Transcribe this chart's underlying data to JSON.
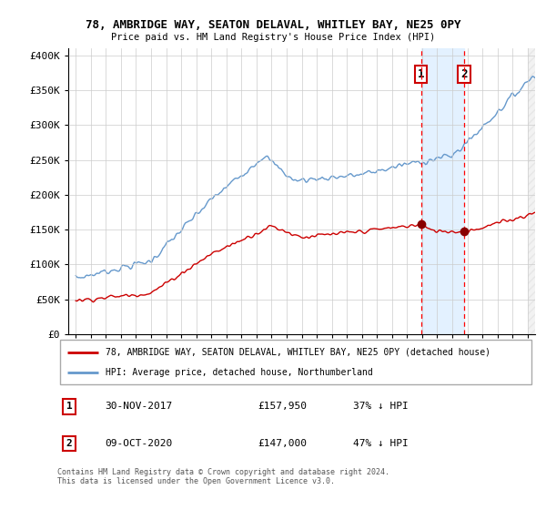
{
  "title1": "78, AMBRIDGE WAY, SEATON DELAVAL, WHITLEY BAY, NE25 0PY",
  "title2": "Price paid vs. HM Land Registry's House Price Index (HPI)",
  "ylabel_ticks": [
    "£0",
    "£50K",
    "£100K",
    "£150K",
    "£200K",
    "£250K",
    "£300K",
    "£350K",
    "£400K"
  ],
  "ytick_vals": [
    0,
    50000,
    100000,
    150000,
    200000,
    250000,
    300000,
    350000,
    400000
  ],
  "ylim": [
    0,
    410000
  ],
  "marker1_x": 2017.92,
  "marker1_price": 157950,
  "marker2_x": 2020.78,
  "marker2_price": 147000,
  "legend_line1": "78, AMBRIDGE WAY, SEATON DELAVAL, WHITLEY BAY, NE25 0PY (detached house)",
  "legend_line2": "HPI: Average price, detached house, Northumberland",
  "table_row1": [
    "1",
    "30-NOV-2017",
    "£157,950",
    "37% ↓ HPI"
  ],
  "table_row2": [
    "2",
    "09-OCT-2020",
    "£147,000",
    "47% ↓ HPI"
  ],
  "footnote": "Contains HM Land Registry data © Crown copyright and database right 2024.\nThis data is licensed under the Open Government Licence v3.0.",
  "line_color_property": "#cc0000",
  "line_color_hpi": "#6699cc",
  "background_color": "#ffffff",
  "grid_color": "#cccccc",
  "shade_color": "#ddeeff",
  "xlim_start": 1994.5,
  "xlim_end": 2025.5
}
